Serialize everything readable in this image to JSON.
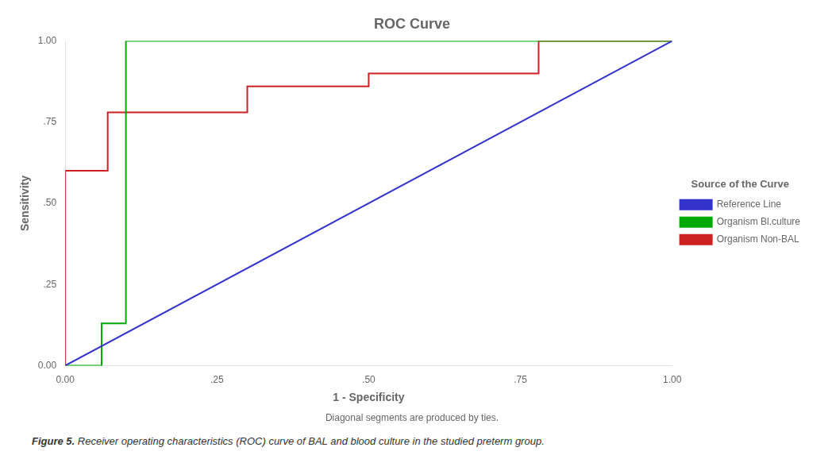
{
  "chart_data": {
    "type": "line",
    "title": "ROC Curve",
    "subtitle": "Diagonal segments are produced by ties.",
    "caption_label": "Figure 5.",
    "caption": "Receiver operating characteristics (ROC) curve of BAL and blood culture in the studied preterm group.",
    "xlabel": "1 - Specificity",
    "ylabel": "Sensitivity",
    "legend_title": "Source of the Curve",
    "legend": "right",
    "grid": false,
    "series": [
      {
        "name": "Reference Line",
        "color": "#3333cc",
        "x": [
          0,
          1
        ],
        "values": [
          0,
          1
        ]
      },
      {
        "name": "Organism Bl.culture",
        "color": "#00aa00",
        "x": [
          0.0,
          0.06,
          0.06,
          0.1,
          0.1,
          1.0
        ],
        "values": [
          0.0,
          0.0,
          0.13,
          0.13,
          1.0,
          1.0
        ]
      },
      {
        "name": "Organism Non-BAL",
        "color": "#cc2222",
        "x": [
          0.0,
          0.0,
          0.07,
          0.07,
          0.3,
          0.3,
          0.5,
          0.5,
          0.78,
          0.78,
          1.0
        ],
        "values": [
          0.0,
          0.6,
          0.6,
          0.78,
          0.78,
          0.86,
          0.86,
          0.9,
          0.9,
          1.0,
          1.0
        ]
      }
    ],
    "xlim": [
      0.0,
      1.0
    ],
    "ylim": [
      0.0,
      1.0
    ],
    "xticks": [
      {
        "value": 0.0,
        "label": "0.00"
      },
      {
        "value": 0.25,
        "label": ".25"
      },
      {
        "value": 0.5,
        "label": ".50"
      },
      {
        "value": 0.75,
        "label": ".75"
      },
      {
        "value": 1.0,
        "label": "1.00"
      }
    ],
    "yticks": [
      {
        "value": 0.0,
        "label": "0.00"
      },
      {
        "value": 0.25,
        "label": ".25"
      },
      {
        "value": 0.5,
        "label": ".50"
      },
      {
        "value": 0.75,
        "label": ".75"
      },
      {
        "value": 1.0,
        "label": "1.00"
      }
    ]
  }
}
